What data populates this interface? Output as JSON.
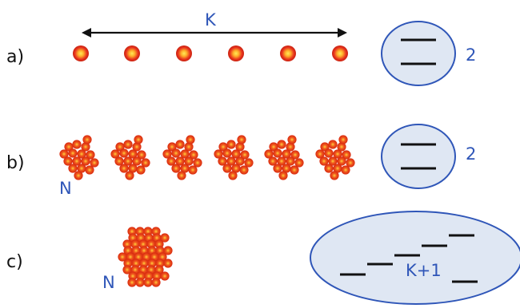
{
  "rows": [
    {
      "label": "a)",
      "arrow_label": "K",
      "level_count_label": "2"
    },
    {
      "label": "b)",
      "cluster_label": "N",
      "level_count_label": "2"
    },
    {
      "label": "c)",
      "cluster_label": "N",
      "level_count_label": "K+1"
    }
  ],
  "colors": {
    "atom_outer": "#e8321e",
    "atom_inner": "#ffd23c",
    "ellipse_fill": "#dfe7f3",
    "ellipse_stroke": "#2f56b8",
    "level_line": "#111111",
    "arrow": "#111111",
    "text_blue": "#2f56b8"
  }
}
